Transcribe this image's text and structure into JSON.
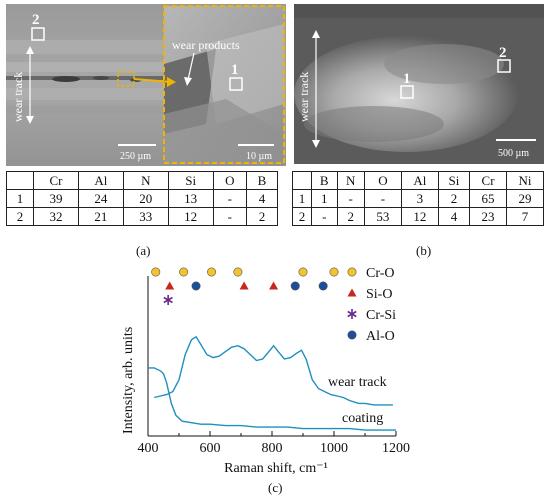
{
  "panel_a": {
    "site_labels": [
      "1",
      "2"
    ],
    "wear_track_label": "wear track",
    "wear_products_label": "wear products",
    "scale_bar_main": "250 µm",
    "scale_bar_inset": "10 µm",
    "table": {
      "headers": [
        "",
        "Cr",
        "Al",
        "N",
        "Si",
        "O",
        "B"
      ],
      "rows": [
        [
          "1",
          "39",
          "24",
          "20",
          "13",
          "-",
          "4"
        ],
        [
          "2",
          "32",
          "21",
          "33",
          "12",
          "-",
          "2"
        ]
      ]
    },
    "caption": "(a)"
  },
  "panel_b": {
    "site_labels": [
      "1",
      "2"
    ],
    "wear_track_label": "wear track",
    "scale_bar": "500 µm",
    "table": {
      "headers": [
        "",
        "B",
        "N",
        "O",
        "Al",
        "Si",
        "Cr",
        "Ni"
      ],
      "rows": [
        [
          "1",
          "1",
          "-",
          "-",
          "3",
          "2",
          "65",
          "29"
        ],
        [
          "2",
          "-",
          "2",
          "53",
          "12",
          "4",
          "23",
          "7"
        ]
      ]
    },
    "caption": "(b)"
  },
  "panel_c": {
    "caption": "(c)",
    "chart_data": {
      "type": "line",
      "xlabel": "Raman shift, cm⁻¹",
      "ylabel": "Intensity, arb. units",
      "xlim": [
        400,
        1200
      ],
      "xticks": [
        400,
        600,
        800,
        1000,
        1200
      ],
      "series": [
        {
          "name": "wear track",
          "color": "#1f8fc0",
          "x": [
            420,
            440,
            460,
            480,
            500,
            520,
            540,
            555,
            570,
            590,
            610,
            630,
            650,
            670,
            690,
            710,
            730,
            750,
            770,
            790,
            805,
            820,
            840,
            860,
            880,
            895,
            910,
            930,
            950,
            970,
            990,
            1010,
            1030,
            1050,
            1080,
            1100,
            1130,
            1160,
            1190
          ],
          "y": [
            0.26,
            0.27,
            0.28,
            0.3,
            0.38,
            0.55,
            0.65,
            0.67,
            0.62,
            0.55,
            0.53,
            0.54,
            0.57,
            0.6,
            0.61,
            0.59,
            0.55,
            0.51,
            0.52,
            0.57,
            0.61,
            0.57,
            0.52,
            0.53,
            0.56,
            0.58,
            0.52,
            0.38,
            0.32,
            0.3,
            0.28,
            0.27,
            0.26,
            0.24,
            0.22,
            0.22,
            0.21,
            0.21,
            0.21
          ]
        },
        {
          "name": "coating",
          "color": "#1f8fc0",
          "x": [
            400,
            420,
            440,
            450,
            460,
            475,
            490,
            510,
            540,
            570,
            600,
            650,
            700,
            750,
            800,
            850,
            900,
            950,
            1000,
            1050,
            1100,
            1150,
            1200
          ],
          "y": [
            0.46,
            0.46,
            0.44,
            0.42,
            0.36,
            0.22,
            0.14,
            0.1,
            0.09,
            0.08,
            0.08,
            0.07,
            0.07,
            0.06,
            0.06,
            0.06,
            0.05,
            0.05,
            0.05,
            0.05,
            0.04,
            0.04,
            0.04
          ]
        }
      ],
      "markers": {
        "Cr-O": [
          425,
          515,
          605,
          690,
          900,
          1000
        ],
        "Si-O": [
          470,
          710,
          805
        ],
        "Cr-Si": [
          465
        ],
        "Al-O": [
          555,
          875,
          965
        ]
      },
      "legend": [
        {
          "name": "Cr-O",
          "symbol": "circle",
          "color": "#f2c230"
        },
        {
          "name": "Si-O",
          "symbol": "triangle",
          "color": "#c8261e"
        },
        {
          "name": "Cr-Si",
          "symbol": "star",
          "color": "#6a2a8c"
        },
        {
          "name": "Al-O",
          "symbol": "circle",
          "color": "#1b4f9c"
        }
      ],
      "curve_labels": [
        "wear track",
        "coating"
      ]
    }
  }
}
